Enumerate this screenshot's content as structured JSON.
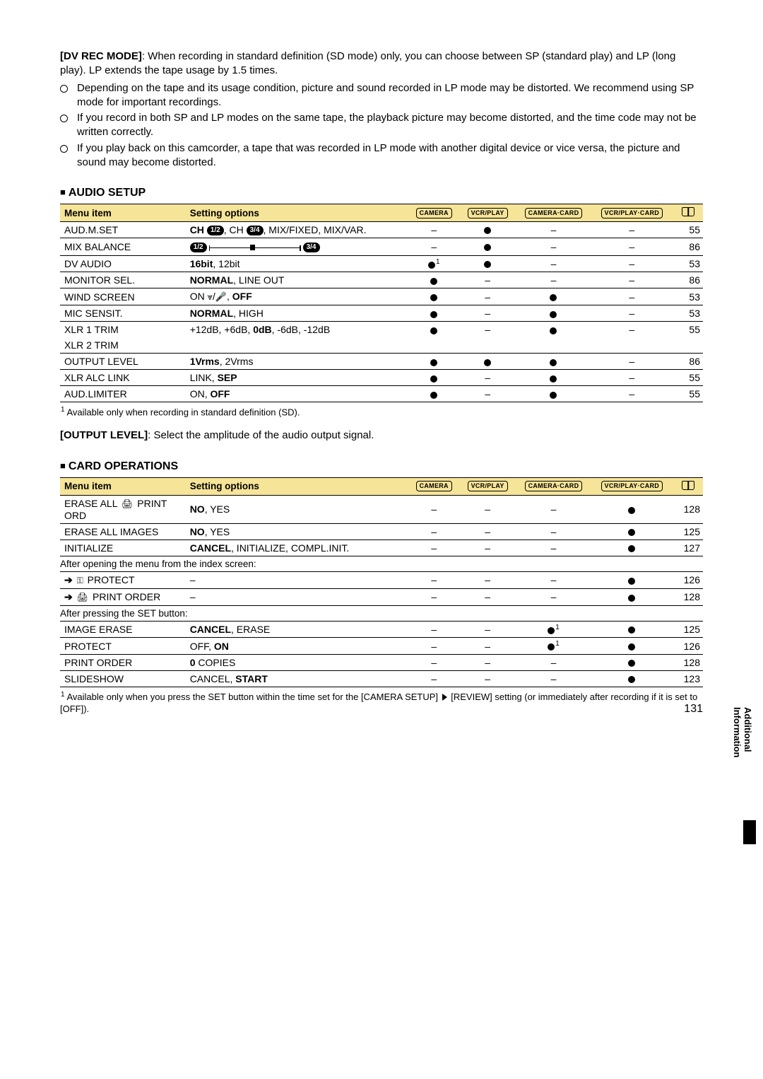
{
  "intro": {
    "heading_prefix": "[DV REC MODE]",
    "heading_text": ": When recording in standard definition (SD mode) only, you can choose between SP (standard play) and LP (long play). LP extends the tape usage by 1.5 times.",
    "bullets": [
      "Depending on the tape and its usage condition, picture and sound recorded in LP mode may be distorted. We recommend using SP mode for important recordings.",
      "If you record in both SP and LP modes on the same tape, the playback picture may become distorted, and the time code may not be written correctly.",
      "If you play back on this camcorder, a tape that was recorded in LP mode with another digital device or vice versa, the picture and sound may become distorted."
    ]
  },
  "columns": {
    "menu": "Menu item",
    "setting": "Setting options",
    "modes": [
      "CAMERA",
      "VCR/PLAY",
      "CAMERA·CARD",
      "VCR/PLAY·CARD"
    ]
  },
  "audio": {
    "title": "AUDIO SETUP",
    "footnote_sup": "1",
    "footnote": "Available only when recording in standard definition (SD).",
    "rows": [
      {
        "menu": "AUD.M.SET",
        "setting_html": "<span class='b'>CH <span class='pill'>1/2</span></span>, CH <span class='pill'>3/4</span>, MIX/FIXED, MIX/VAR.",
        "m": [
          "–",
          "dot",
          "–",
          "–"
        ],
        "page": "55"
      },
      {
        "menu": "MIX BALANCE",
        "setting_html": "<span class='pill'>1/2</span><span class='slider-icon'><span class='track'><span class='handle'></span></span></span><span class='pill'>3/4</span>",
        "m": [
          "–",
          "dot",
          "–",
          "–"
        ],
        "page": "86"
      },
      {
        "menu": "DV AUDIO",
        "setting_html": "<span class='b'>16bit</span>, 12bit",
        "m": [
          "dot1",
          "dot",
          "–",
          "–"
        ],
        "page": "53"
      },
      {
        "menu": "MONITOR SEL.",
        "setting_html": "<span class='b'>NORMAL</span>, LINE OUT",
        "m": [
          "dot",
          "–",
          "–",
          "–"
        ],
        "page": "86"
      },
      {
        "menu": "WIND SCREEN",
        "setting_html": "ON <span class='wind-icon'>⩔</span>/<span class='mic-icon'>🎤</span>, <span class='b'>OFF</span>",
        "m": [
          "dot",
          "–",
          "dot",
          "–"
        ],
        "page": "53"
      },
      {
        "menu": "MIC SENSIT.",
        "setting_html": "<span class='b'>NORMAL</span>, HIGH",
        "m": [
          "dot",
          "–",
          "dot",
          "–"
        ],
        "page": "53"
      },
      {
        "menu": "XLR 1 TRIM",
        "setting_html": "+12dB, +6dB, <span class='b'>0dB</span>, -6dB, -12dB",
        "m": [
          "dot",
          "–",
          "dot",
          "–"
        ],
        "page": "55"
      },
      {
        "menu": "XLR 2 TRIM",
        "setting_html": "",
        "m": [
          "",
          "",
          "",
          ""
        ],
        "page": ""
      },
      {
        "menu": "OUTPUT LEVEL",
        "setting_html": "<span class='b'>1Vrms</span>, 2Vrms",
        "m": [
          "dot",
          "dot",
          "dot",
          "–"
        ],
        "page": "86"
      },
      {
        "menu": "XLR ALC LINK",
        "setting_html": "LINK, <span class='b'>SEP</span>",
        "m": [
          "dot",
          "–",
          "dot",
          "–"
        ],
        "page": "55"
      },
      {
        "menu": "AUD.LIMITER",
        "setting_html": "ON, <span class='b'>OFF</span>",
        "m": [
          "dot",
          "–",
          "dot",
          "–"
        ],
        "page": "55"
      }
    ]
  },
  "output_level": {
    "prefix": "[OUTPUT LEVEL]",
    "text": ": Select the amplitude of the audio output signal."
  },
  "card": {
    "title": "CARD OPERATIONS",
    "sub1": "After opening the menu from the index screen:",
    "sub2": "After pressing the SET button:",
    "footnote_sup": "1",
    "footnote": "Available only when you press the SET button within the time set for the [CAMERA SETUP] ▶ [REVIEW] setting (or immediately after recording if it is set to [OFF]).",
    "rows_a": [
      {
        "menu_html": "ERASE ALL <span class='print-icon'>🖨</span> PRINT ORD",
        "setting_html": "<span class='b'>NO</span>, YES",
        "m": [
          "–",
          "–",
          "–",
          "dot"
        ],
        "page": "128"
      },
      {
        "menu_html": "ERASE ALL IMAGES",
        "setting_html": "<span class='b'>NO</span>, YES",
        "m": [
          "–",
          "–",
          "–",
          "dot"
        ],
        "page": "125"
      },
      {
        "menu_html": "INITIALIZE",
        "setting_html": "<span class='b'>CANCEL</span>, INITIALIZE, COMPL.INIT.",
        "m": [
          "–",
          "–",
          "–",
          "dot"
        ],
        "page": "127"
      }
    ],
    "rows_b": [
      {
        "menu_html": "<span class='arrow'>➔</span> <span class='key-icon'>⚿</span> PROTECT",
        "setting_html": "–",
        "m": [
          "–",
          "–",
          "–",
          "dot"
        ],
        "page": "126"
      },
      {
        "menu_html": "<span class='arrow'>➔</span> <span class='print-icon'>🖨</span> PRINT ORDER",
        "setting_html": "–",
        "m": [
          "–",
          "–",
          "–",
          "dot"
        ],
        "page": "128"
      }
    ],
    "rows_c": [
      {
        "menu_html": "IMAGE ERASE",
        "setting_html": "<span class='b'>CANCEL</span>, ERASE",
        "m": [
          "–",
          "–",
          "dot1",
          "dot"
        ],
        "page": "125"
      },
      {
        "menu_html": "PROTECT",
        "setting_html": "OFF, <span class='b'>ON</span>",
        "m": [
          "–",
          "–",
          "dot1",
          "dot"
        ],
        "page": "126"
      },
      {
        "menu_html": "PRINT ORDER",
        "setting_html": "<span class='b'>0</span> COPIES",
        "m": [
          "–",
          "–",
          "–",
          "dot"
        ],
        "page": "128"
      },
      {
        "menu_html": "SLIDESHOW",
        "setting_html": "CANCEL, <span class='b'>START</span>",
        "m": [
          "–",
          "–",
          "–",
          "dot"
        ],
        "page": "123"
      }
    ]
  },
  "side_tab": "Additional Information",
  "page_number": "131"
}
